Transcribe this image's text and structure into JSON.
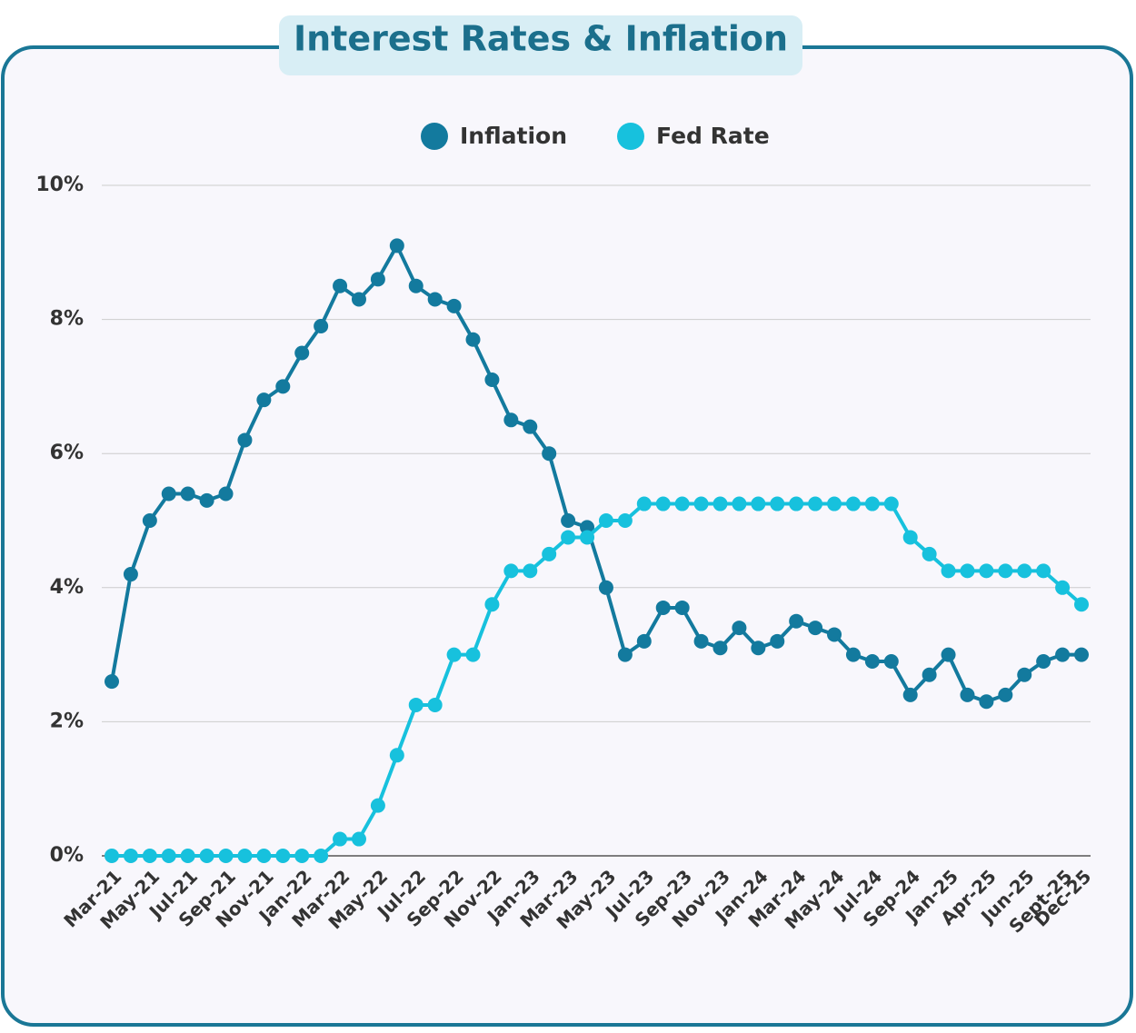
{
  "chart_data": {
    "type": "line",
    "title": "Interest Rates & Inflation",
    "categories": [
      "Mar-21",
      null,
      "May-21",
      null,
      "Jul-21",
      null,
      "Sep-21",
      null,
      "Nov-21",
      null,
      "Jan-22",
      null,
      "Mar-22",
      null,
      "May-22",
      null,
      "Jul-22",
      null,
      "Sep-22",
      null,
      "Nov-22",
      null,
      "Jan-23",
      null,
      "Mar-23",
      null,
      "May-23",
      null,
      "Jul-23",
      null,
      "Sep-23",
      null,
      "Nov-23",
      null,
      "Jan-24",
      null,
      "Mar-24",
      null,
      "May-24",
      null,
      "Jul-24",
      null,
      "Sep-24",
      null,
      "Jan-25",
      null,
      "Apr-25",
      null,
      "Jun-25",
      null,
      "Sept-25",
      "Dec-25"
    ],
    "series": [
      {
        "name": "Inflation",
        "color": "#137a9e",
        "values": [
          2.6,
          4.2,
          5.0,
          5.4,
          5.4,
          5.3,
          5.4,
          6.2,
          6.8,
          7.0,
          7.5,
          7.9,
          8.5,
          8.3,
          8.6,
          9.1,
          8.5,
          8.3,
          8.2,
          7.7,
          7.1,
          6.5,
          6.4,
          6.0,
          5.0,
          4.9,
          4.0,
          3.0,
          3.2,
          3.7,
          3.7,
          3.2,
          3.1,
          3.4,
          3.1,
          3.2,
          3.5,
          3.4,
          3.3,
          3.0,
          2.9,
          2.9,
          2.4,
          2.7,
          3.0,
          2.4,
          2.3,
          2.4,
          2.7,
          2.9,
          3.0,
          3.0
        ]
      },
      {
        "name": "Fed Rate",
        "color": "#17c1dd",
        "values": [
          0,
          0,
          0,
          0,
          0,
          0,
          0,
          0,
          0,
          0,
          0,
          0,
          0.25,
          0.25,
          0.75,
          1.5,
          2.25,
          2.25,
          3.0,
          3.0,
          3.75,
          4.25,
          4.25,
          4.5,
          4.75,
          4.75,
          5.0,
          5.0,
          5.25,
          5.25,
          5.25,
          5.25,
          5.25,
          5.25,
          5.25,
          5.25,
          5.25,
          5.25,
          5.25,
          5.25,
          5.25,
          5.25,
          4.75,
          4.5,
          4.25,
          4.25,
          4.25,
          4.25,
          4.25,
          4.25,
          4.0,
          3.75
        ]
      }
    ],
    "ylim": [
      0,
      10
    ],
    "yticks": [
      {
        "value": 0,
        "label": "0%"
      },
      {
        "value": 2,
        "label": "2%"
      },
      {
        "value": 4,
        "label": "4%"
      },
      {
        "value": 6,
        "label": "6%"
      },
      {
        "value": 8,
        "label": "8%"
      },
      {
        "value": 10,
        "label": "10%"
      }
    ],
    "grid": true
  }
}
